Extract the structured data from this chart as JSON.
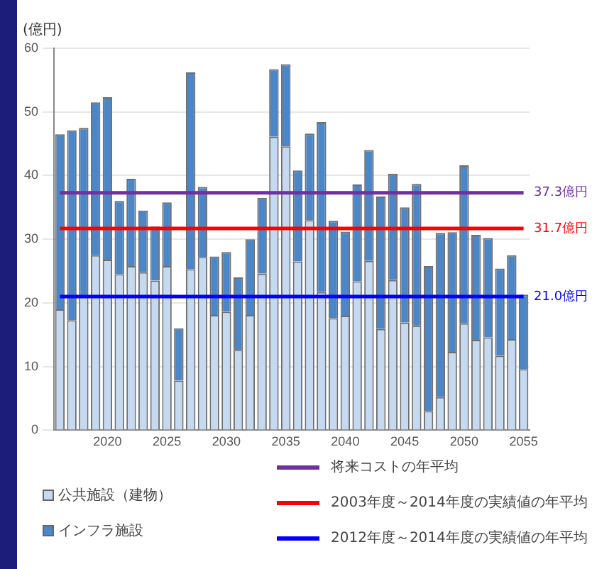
{
  "chart_data": {
    "type": "bar",
    "ylabel": "(億円)",
    "stacked": true,
    "categories": [
      null,
      null,
      null,
      null,
      "2020",
      null,
      null,
      null,
      null,
      "2025",
      null,
      null,
      null,
      null,
      "2030",
      null,
      null,
      null,
      null,
      "2035",
      null,
      null,
      null,
      null,
      "2040",
      null,
      null,
      null,
      null,
      "2045",
      null,
      null,
      null,
      null,
      "2050",
      null,
      null,
      null,
      null,
      "2055"
    ],
    "series": [
      {
        "name": "公共施設（建物）",
        "color": "#c5d9f1",
        "values": [
          19.0,
          17.3,
          21.0,
          27.5,
          26.8,
          24.5,
          25.8,
          24.8,
          23.5,
          25.8,
          7.8,
          25.3,
          27.2,
          18.1,
          18.6,
          12.6,
          18.1,
          24.6,
          46.1,
          44.6,
          26.5,
          33.0,
          21.7,
          17.6,
          18.0,
          23.4,
          26.6,
          15.9,
          23.6,
          16.9,
          16.4,
          3.0,
          5.2,
          12.3,
          16.8,
          14.2,
          14.6,
          11.7,
          14.3,
          9.6
        ]
      },
      {
        "name": "インフラ施設",
        "color": "#4a86c8",
        "values": [
          27.5,
          29.8,
          26.5,
          24.0,
          25.5,
          11.5,
          13.7,
          9.7,
          8.5,
          10.0,
          8.2,
          30.9,
          11.0,
          9.2,
          9.4,
          11.4,
          11.9,
          11.9,
          10.6,
          12.9,
          14.3,
          13.6,
          26.7,
          15.3,
          13.2,
          15.2,
          17.4,
          20.8,
          16.7,
          18.1,
          22.3,
          22.8,
          25.8,
          18.8,
          24.8,
          16.5,
          15.6,
          13.7,
          13.2,
          11.7
        ]
      },
      {
        "name": "将来コストの年平均",
        "type": "line",
        "color": "#7030a0",
        "values": [
          37.3,
          37.3,
          37.3,
          37.3,
          37.3,
          37.3,
          37.3,
          37.3,
          37.3,
          37.3,
          37.3,
          37.3,
          37.3,
          37.3,
          37.3,
          37.3,
          37.3,
          37.3,
          37.3,
          37.3,
          37.3,
          37.3,
          37.3,
          37.3,
          37.3,
          37.3,
          37.3,
          37.3,
          37.3,
          37.3,
          37.3,
          37.3,
          37.3,
          37.3,
          37.3,
          37.3,
          37.3,
          37.3,
          37.3,
          37.3
        ]
      },
      {
        "name": "2003年度～2014年度の実績値の年平均",
        "type": "line",
        "color": "#ff0000",
        "values": [
          31.7,
          31.7,
          31.7,
          31.7,
          31.7,
          31.7,
          31.7,
          31.7,
          31.7,
          31.7,
          31.7,
          31.7,
          31.7,
          31.7,
          31.7,
          31.7,
          31.7,
          31.7,
          31.7,
          31.7,
          31.7,
          31.7,
          31.7,
          31.7,
          31.7,
          31.7,
          31.7,
          31.7,
          31.7,
          31.7,
          31.7,
          31.7,
          31.7,
          31.7,
          31.7,
          31.7,
          31.7,
          31.7,
          31.7,
          31.7
        ]
      },
      {
        "name": "2012年度～2014年度の実績値の年平均",
        "type": "line",
        "color": "#0000ff",
        "values": [
          21.0,
          21.0,
          21.0,
          21.0,
          21.0,
          21.0,
          21.0,
          21.0,
          21.0,
          21.0,
          21.0,
          21.0,
          21.0,
          21.0,
          21.0,
          21.0,
          21.0,
          21.0,
          21.0,
          21.0,
          21.0,
          21.0,
          21.0,
          21.0,
          21.0,
          21.0,
          21.0,
          21.0,
          21.0,
          21.0,
          21.0,
          21.0,
          21.0,
          21.0,
          21.0,
          21.0,
          21.0,
          21.0,
          21.0,
          21.0
        ]
      }
    ],
    "annotations": [
      {
        "text": "37.3億円",
        "x": "2055",
        "y": 37.3
      },
      {
        "text": "31.7億円",
        "x": "2055",
        "y": 31.7
      },
      {
        "text": "21.0億円",
        "x": "2055",
        "y": 21.0
      }
    ],
    "ylim": [
      0,
      60
    ],
    "yticks": [
      0,
      10,
      20,
      30,
      40,
      50,
      60
    ],
    "grid": "y",
    "legend": "bottom",
    "marker": "none"
  }
}
